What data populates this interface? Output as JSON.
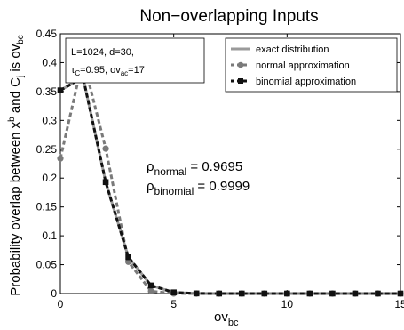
{
  "chart_data": {
    "type": "line",
    "title": "Non−overlapping Inputs",
    "xlabel": {
      "main": "ov",
      "sub": "bc"
    },
    "ylabel": {
      "t1": "Probability overlap between x",
      "sup1": "b",
      "t2": " and C",
      "sub2": "j",
      "t3": " is ov",
      "sub3": "bc"
    },
    "xlim": [
      0,
      15
    ],
    "ylim": [
      0,
      0.45
    ],
    "xticks": [
      0,
      5,
      10,
      15
    ],
    "yticks": [
      0,
      0.05,
      0.1,
      0.15,
      0.2,
      0.25,
      0.3,
      0.35,
      0.4,
      0.45
    ],
    "ytick_labels": [
      "0",
      "0.05",
      "0.1",
      "0.15",
      "0.2",
      "0.25",
      "0.3",
      "0.35",
      "0.4",
      "0.45"
    ],
    "grid": false,
    "legend_position": "top-right",
    "x": [
      0,
      1,
      2,
      3,
      4,
      5,
      6,
      7,
      8,
      9,
      10,
      11,
      12,
      13,
      14,
      15
    ],
    "series": [
      {
        "name": "exact distribution",
        "color": "#9a9a9a",
        "style": "solid",
        "marker": "none",
        "values": [
          0.352,
          0.375,
          0.193,
          0.063,
          0.014,
          0.002,
          0.0002,
          0,
          0,
          0,
          0,
          0,
          0,
          0,
          0,
          0
        ]
      },
      {
        "name": "normal approximation",
        "color": "#7a7a7a",
        "style": "dashed",
        "marker": "circle",
        "values": [
          0.234,
          0.406,
          0.251,
          0.055,
          0.004,
          0.0001,
          0,
          0,
          0,
          0,
          0,
          0,
          0,
          0,
          0,
          0
        ]
      },
      {
        "name": "binomial approximation",
        "color": "#111111",
        "style": "dashed",
        "marker": "square",
        "values": [
          0.352,
          0.375,
          0.193,
          0.063,
          0.014,
          0.002,
          0.0002,
          0,
          0,
          0,
          0,
          0,
          0,
          0,
          0,
          0
        ]
      }
    ],
    "info_box": [
      "L=1024, d=30,",
      "τ",
      "C",
      "=0.95, ov",
      "ac",
      "=17"
    ],
    "annotations": [
      {
        "main": "ρ",
        "sub": "normal",
        "rest": " = 0.9695"
      },
      {
        "main": "ρ",
        "sub": "binomial",
        "rest": " = 0.9999"
      }
    ]
  }
}
